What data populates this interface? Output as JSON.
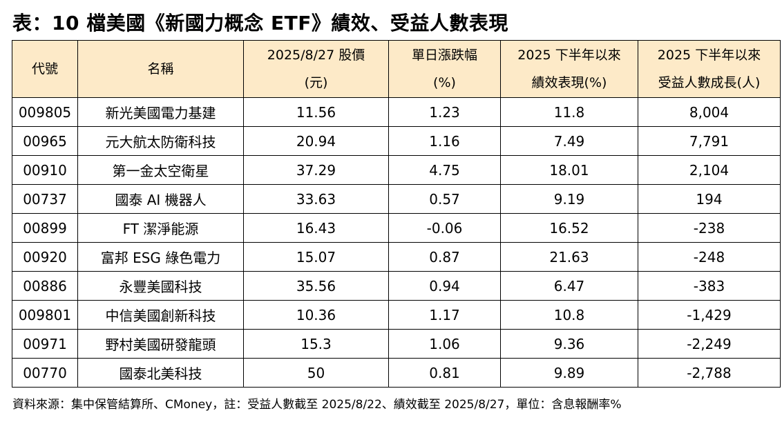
{
  "title": "表：10 檔美國《新國力概念 ETF》績效、受益人數表現",
  "table": {
    "headers": [
      {
        "line1": "代號",
        "line2": ""
      },
      {
        "line1": "名稱",
        "line2": ""
      },
      {
        "line1": "2025/8/27 股價",
        "line2": "(元)"
      },
      {
        "line1": "單日漲跌幅",
        "line2": "(%)"
      },
      {
        "line1": "2025 下半年以來",
        "line2": "績效表現(%)"
      },
      {
        "line1": "2025 下半年以來",
        "line2": "受益人數成長(人)"
      }
    ],
    "rows": [
      [
        "009805",
        "新光美國電力基建",
        "11.56",
        "1.23",
        "11.8",
        "8,004"
      ],
      [
        "00965",
        "元大航太防衛科技",
        "20.94",
        "1.16",
        "7.49",
        "7,791"
      ],
      [
        "00910",
        "第一金太空衛星",
        "37.29",
        "4.75",
        "18.01",
        "2,104"
      ],
      [
        "00737",
        "國泰 AI 機器人",
        "33.63",
        "0.57",
        "9.19",
        "194"
      ],
      [
        "00899",
        "FT 潔淨能源",
        "16.43",
        "-0.06",
        "16.52",
        "-238"
      ],
      [
        "00920",
        "富邦 ESG 綠色電力",
        "15.07",
        "0.87",
        "21.63",
        "-248"
      ],
      [
        "00886",
        "永豐美國科技",
        "35.56",
        "0.94",
        "6.47",
        "-383"
      ],
      [
        "009801",
        "中信美國創新科技",
        "10.36",
        "1.17",
        "10.8",
        "-1,429"
      ],
      [
        "00971",
        "野村美國研發龍頭",
        "15.3",
        "1.06",
        "9.36",
        "-2,249"
      ],
      [
        "00770",
        "國泰北美科技",
        "50",
        "0.81",
        "9.89",
        "-2,788"
      ]
    ]
  },
  "footer": "資料來源：集中保管結算所、CMoney，註：受益人數截至 2025/8/22、績效截至 2025/8/27，單位：含息報酬率%",
  "colors": {
    "header_bg": "#fdeac8",
    "border": "#000000",
    "text": "#000000"
  }
}
